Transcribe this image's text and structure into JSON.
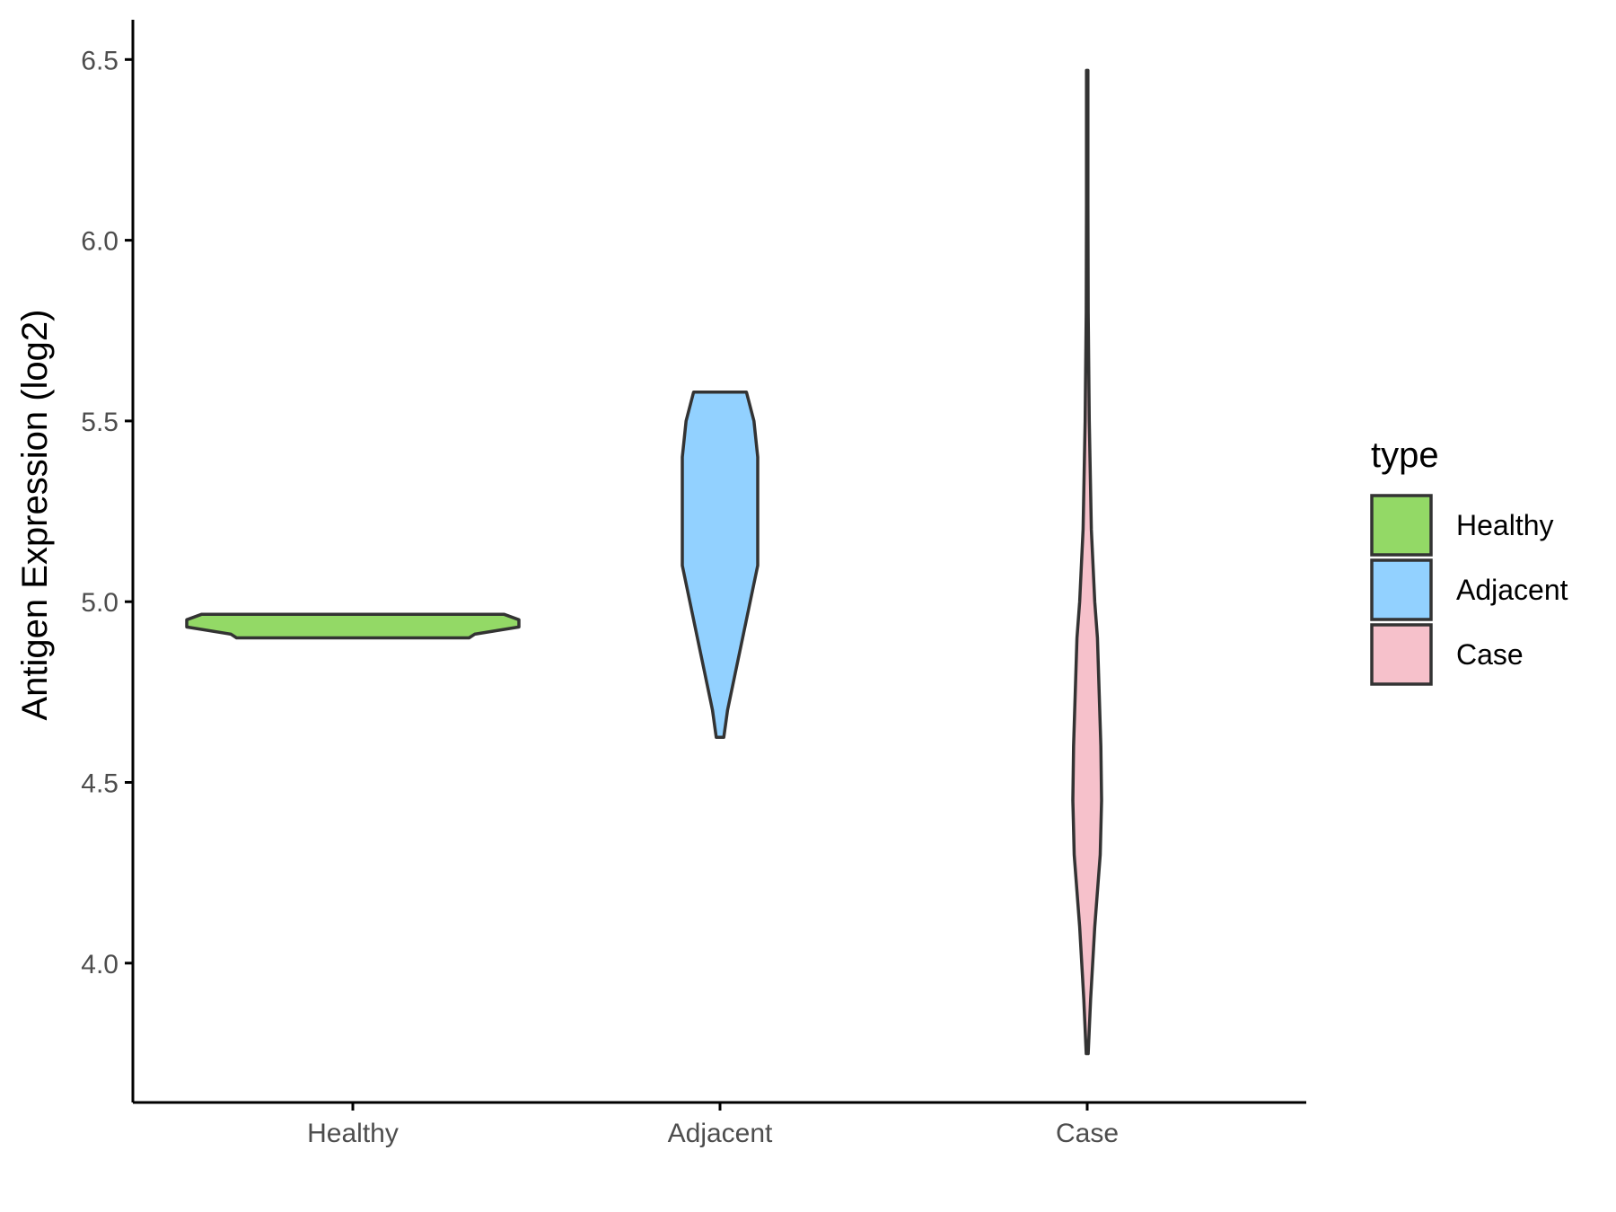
{
  "chart_data": {
    "type": "violin",
    "ylabel": "Antigen Expression (log2)",
    "xlabel": "",
    "categories": [
      "Healthy",
      "Adjacent",
      "Case"
    ],
    "ylim": [
      3.6,
      6.6
    ],
    "yticks": [
      "4.0",
      "4.5",
      "5.0",
      "5.5",
      "6.0",
      "6.5"
    ],
    "grid": false,
    "legend": {
      "title": "type",
      "position": "right",
      "entries": [
        "Healthy",
        "Adjacent",
        "Case"
      ]
    },
    "series": [
      {
        "name": "Healthy",
        "color": "#93d966",
        "min": 4.9,
        "max": 4.965,
        "density": [
          [
            4.9,
            0.63
          ],
          [
            4.91,
            0.66
          ],
          [
            4.93,
            0.9
          ],
          [
            4.95,
            0.9
          ],
          [
            4.965,
            0.82
          ]
        ]
      },
      {
        "name": "Adjacent",
        "color": "#92d1ff",
        "min": 4.625,
        "max": 5.58,
        "density": [
          [
            4.625,
            0.01
          ],
          [
            4.7,
            0.02
          ],
          [
            4.8,
            0.04
          ],
          [
            4.9,
            0.06
          ],
          [
            5.0,
            0.08
          ],
          [
            5.1,
            0.1
          ],
          [
            5.2,
            0.1
          ],
          [
            5.3,
            0.1
          ],
          [
            5.4,
            0.1
          ],
          [
            5.5,
            0.09
          ],
          [
            5.58,
            0.07
          ]
        ]
      },
      {
        "name": "Case",
        "color": "#f6c1cb",
        "min": 3.75,
        "max": 6.47,
        "density": [
          [
            3.75,
            0.003
          ],
          [
            3.9,
            0.01
          ],
          [
            4.1,
            0.022
          ],
          [
            4.3,
            0.038
          ],
          [
            4.45,
            0.042
          ],
          [
            4.6,
            0.04
          ],
          [
            4.75,
            0.035
          ],
          [
            4.9,
            0.03
          ],
          [
            5.0,
            0.022
          ],
          [
            5.2,
            0.012
          ],
          [
            5.5,
            0.006
          ],
          [
            5.8,
            0.003
          ],
          [
            6.1,
            0.002
          ],
          [
            6.47,
            0.002
          ]
        ]
      }
    ]
  }
}
